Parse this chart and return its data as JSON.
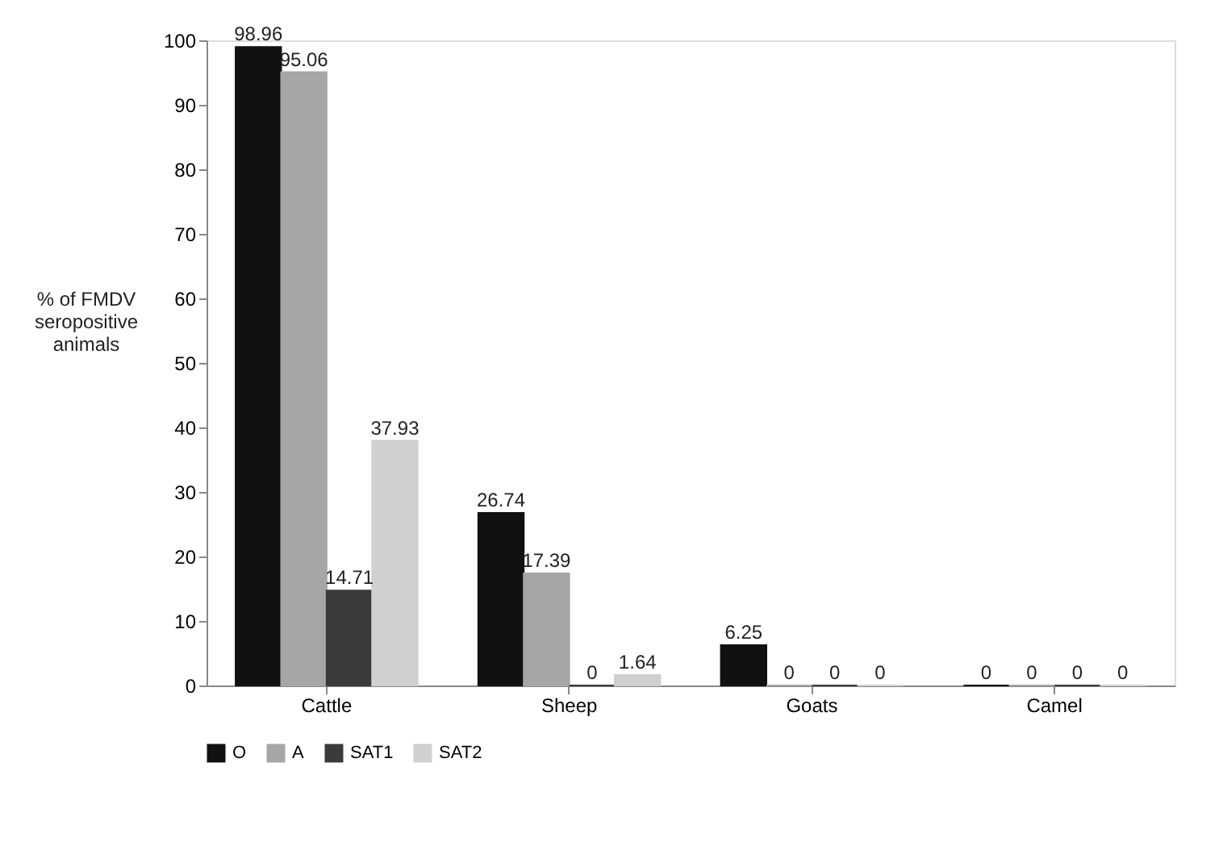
{
  "chart_data": {
    "type": "bar",
    "ylabel": "% of FMDV seropositive animals",
    "categories": [
      "Cattle",
      "Sheep",
      "Goats",
      "Camel"
    ],
    "series": [
      {
        "name": "O",
        "color": "#111111",
        "values": [
          98.96,
          26.74,
          6.25,
          0
        ]
      },
      {
        "name": "A",
        "color": "#a6a6a6",
        "values": [
          95.06,
          17.39,
          0,
          0
        ]
      },
      {
        "name": "SAT1",
        "color": "#3a3a3a",
        "values": [
          14.71,
          0,
          0,
          0
        ]
      },
      {
        "name": "SAT2",
        "color": "#d0d0d0",
        "values": [
          37.93,
          1.64,
          0,
          0
        ]
      }
    ],
    "ylim": [
      0,
      100
    ],
    "yticks": [
      0,
      10,
      20,
      30,
      40,
      50,
      60,
      70,
      80,
      90,
      100
    ],
    "data_labels": true,
    "legend": "bottom",
    "grid": false
  }
}
